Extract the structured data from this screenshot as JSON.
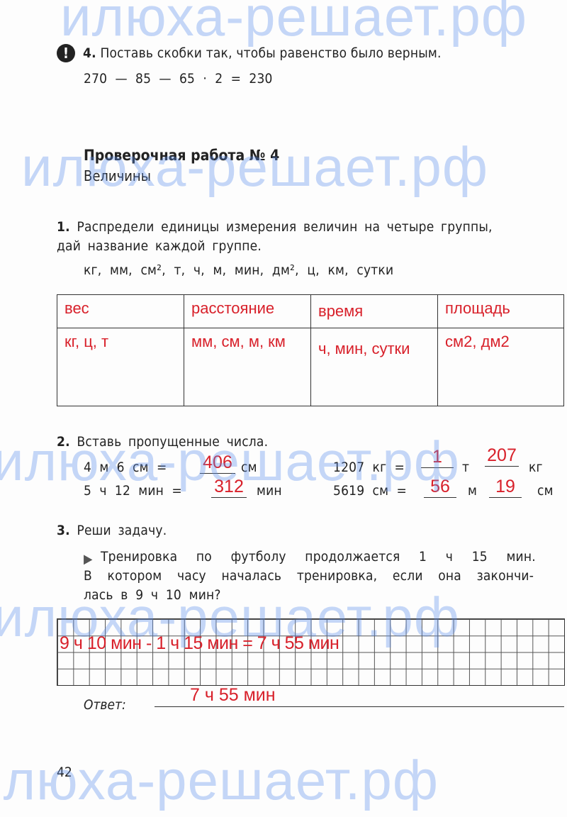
{
  "watermark": "илюха-решает.рф",
  "task4": {
    "badge": "!",
    "number": "4.",
    "text": "Поставь скобки так, чтобы равенство было верным.",
    "expression": "270  —  85  —  65  ·  2  =  230"
  },
  "test": {
    "title": "Проверочная работа № 4",
    "subtitle": "Величины"
  },
  "task1": {
    "number": "1.",
    "line1": "Распредели единицы измерения величин на четыре группы,",
    "line2": "дай название каждой группе.",
    "units": [
      "кг,",
      "мм,",
      "см²,",
      "т,",
      "ч,",
      "м,",
      "мин,",
      "дм²,",
      "ц,",
      "км,",
      "сутки"
    ],
    "table": {
      "headers": [
        "вес",
        "расстояние",
        "время",
        "площадь"
      ],
      "cells": [
        "кг, ц, т",
        "мм, см, м, км",
        "ч, мин, сутки",
        "см2, дм2"
      ]
    }
  },
  "task2": {
    "number": "2.",
    "text": "Вставь пропущенные числа.",
    "eq1": {
      "left": "4  м  6  см  =",
      "answer": "406",
      "unit": "см"
    },
    "eq2": {
      "left": "5  ч  12  мин  =",
      "answer": "312",
      "unit": "мин"
    },
    "eq3": {
      "left": "1207  кг  =",
      "answer1": "1",
      "unit1": "т",
      "answer2": "207",
      "unit2": "кг"
    },
    "eq4": {
      "left": "5619  см  =",
      "answer1": "56",
      "unit1": "м",
      "answer2": "19",
      "unit2": "см"
    }
  },
  "task3": {
    "number": "3.",
    "text": "Реши задачу.",
    "problem": [
      "Тренировка по футболу продолжается 1 ч 15 мин.",
      "В котором часу началась тренировка, если она закончи-",
      "лась в 9 ч 10 мин?"
    ],
    "solution": "9 ч 10 мин - 1 ч 15 мин = 7 ч 55 мин",
    "answer_label": "Ответ:",
    "answer": "7 ч 55 мин"
  },
  "page_number": "42"
}
